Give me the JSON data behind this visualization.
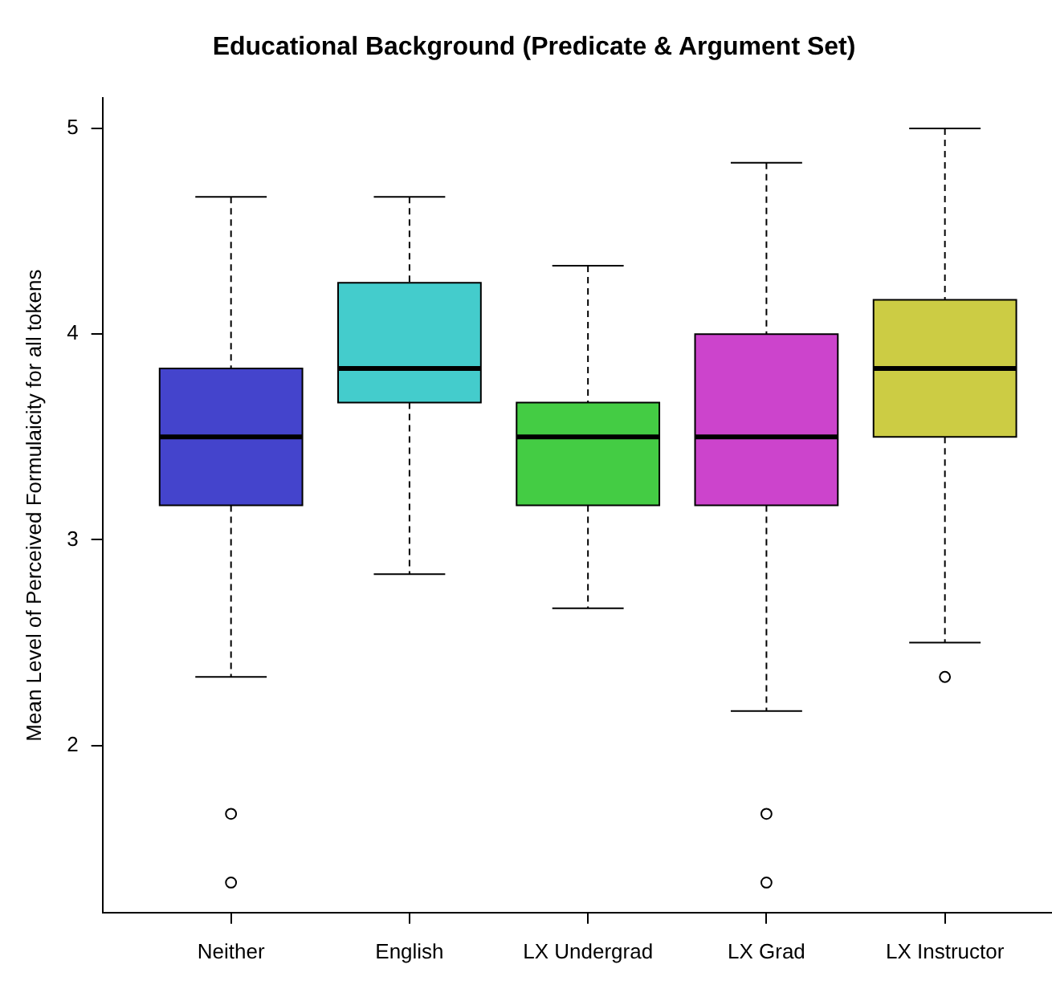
{
  "chart_data": {
    "type": "box",
    "title": "Educational Background (Predicate & Argument Set)",
    "ylabel": "Mean Level of Perceived Formulaicity for all tokens",
    "categories": [
      "Neither",
      "English",
      "LX Undergrad",
      "LX Grad",
      "LX Instructor"
    ],
    "colors": [
      "#4444cc",
      "#44cccc",
      "#44cc44",
      "#cc44cc",
      "#cccc44"
    ],
    "boxes": [
      {
        "low": 2.333,
        "q1": 3.167,
        "median": 3.5,
        "q3": 3.833,
        "high": 4.667,
        "outliers": [
          1.667,
          1.333
        ]
      },
      {
        "low": 2.833,
        "q1": 3.667,
        "median": 3.833,
        "q3": 4.25,
        "high": 4.667
      },
      {
        "low": 2.667,
        "q1": 3.167,
        "median": 3.5,
        "q3": 3.667,
        "high": 4.333
      },
      {
        "low": 2.167,
        "q1": 3.167,
        "median": 3.5,
        "q3": 4.0,
        "high": 4.833,
        "outliers": [
          1.667,
          1.333
        ]
      },
      {
        "low": 2.5,
        "q1": 3.5,
        "median": 3.833,
        "q3": 4.167,
        "high": 5.0,
        "outliers": [
          2.333
        ]
      }
    ],
    "ylim": [
      1.187,
      5.147
    ],
    "yticks": [
      2,
      3,
      4,
      5
    ],
    "grid": false,
    "legend": false
  }
}
